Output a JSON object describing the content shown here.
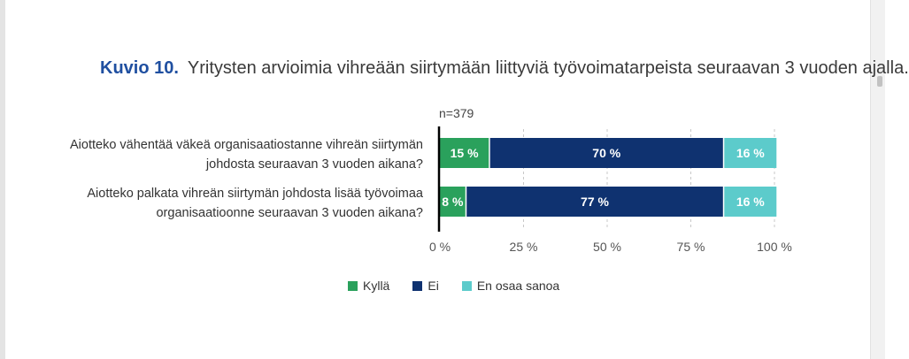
{
  "header": {
    "figure_label": "Kuvio 10.",
    "title": "Yritysten arvioimia vihreään siirtymään liittyviä työvoimatarpeista seuraavan 3 vuoden ajalla."
  },
  "chart_data": {
    "type": "bar",
    "orientation": "horizontal",
    "stacked": true,
    "annotation": "n=379",
    "categories": [
      [
        "Aiotteko vähentää väkeä organisaatiostanne vihreän siirtymän",
        "johdosta seuraavan 3 vuoden aikana?"
      ],
      [
        "Aiotteko palkata vihreän siirtymän johdosta lisää työvoimaa",
        "organisaatioonne seuraavan 3 vuoden aikana?"
      ]
    ],
    "series": [
      {
        "name": "Kyllä",
        "color": "#2aa15c",
        "values": [
          15,
          8
        ],
        "labels": [
          "15 %",
          "8 %"
        ]
      },
      {
        "name": "Ei",
        "color": "#0f3270",
        "values": [
          70,
          77
        ],
        "labels": [
          "70 %",
          "77 %"
        ]
      },
      {
        "name": "En osaa sanoa",
        "color": "#5ccbcb",
        "values": [
          16,
          16
        ],
        "labels": [
          "16 %",
          "16 %"
        ]
      }
    ],
    "xlim": [
      0,
      100
    ],
    "xticks": [
      0,
      25,
      50,
      75,
      100
    ],
    "xtick_labels": [
      "0 %",
      "25 %",
      "50 %",
      "75 %",
      "100 %"
    ],
    "grid": true,
    "legend_position": "bottom"
  }
}
